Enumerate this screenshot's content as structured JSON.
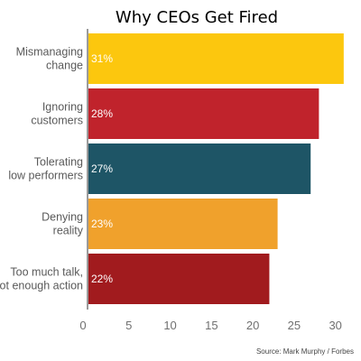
{
  "chart_data": {
    "type": "bar",
    "orientation": "horizontal",
    "title": "Why CEOs Get Fired",
    "categories": [
      [
        "Mismanaging",
        "change"
      ],
      [
        "Ignoring",
        "customers"
      ],
      [
        "Tolerating",
        "low performers"
      ],
      [
        "Denying",
        "reality"
      ],
      [
        "Too much talk,",
        "not enough  action"
      ]
    ],
    "values": [
      31,
      28,
      27,
      23,
      22
    ],
    "value_labels": [
      "31%",
      "28%",
      "27%",
      "23%",
      "22%"
    ],
    "bar_colors": [
      "#fcc70e",
      "#c0232c",
      "#1e5566",
      "#f0a12c",
      "#a11b1e"
    ],
    "xlim": [
      0,
      32
    ],
    "x_ticks": [
      0,
      5,
      10,
      15,
      20,
      25,
      30
    ],
    "grid": false,
    "xlabel": "",
    "ylabel": ""
  },
  "source": "Source: Mark Murphy / Forbes"
}
